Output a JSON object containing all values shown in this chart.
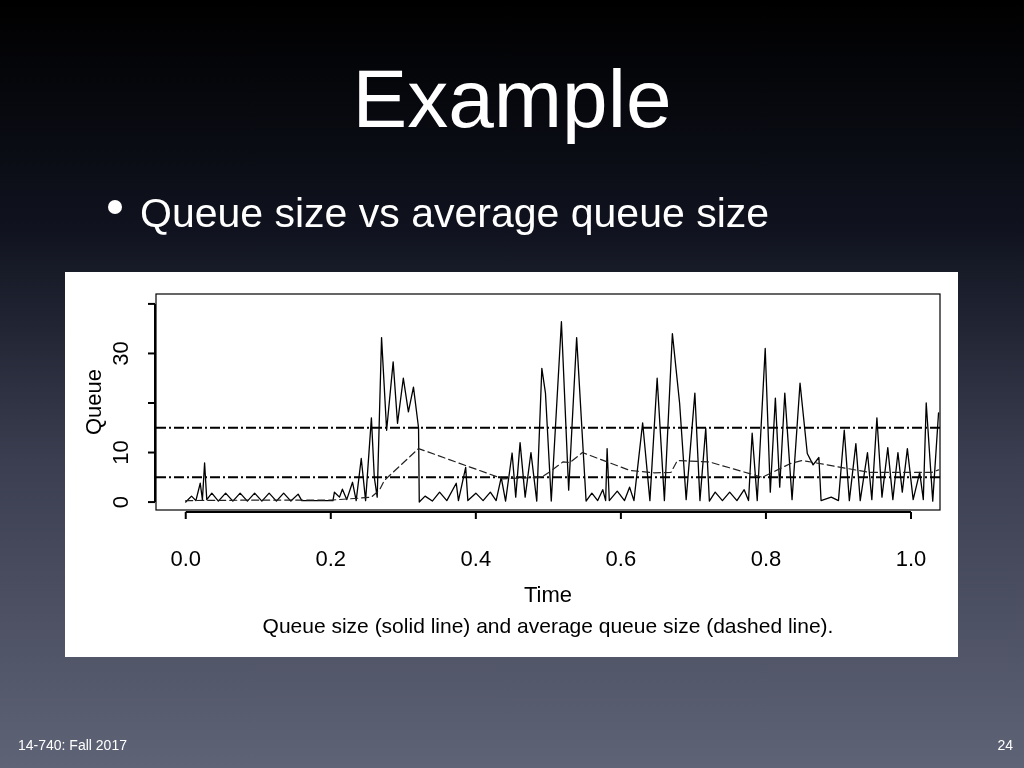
{
  "chart_data": {
    "type": "line",
    "title": "Example",
    "subtitle": "Queue size vs average queue size",
    "xlabel": "Time",
    "ylabel": "Queue",
    "annotations": [
      "Queue size (solid line) and average queue size (dashed line).",
      "14-740: Fall 2017",
      "24"
    ],
    "xlim": [
      -0.041,
      1.04
    ],
    "ylim": [
      -1.6,
      42
    ],
    "xticks": [
      {
        "value": 0,
        "label": "0.0"
      },
      0.2,
      0.4,
      0.6,
      0.8,
      {
        "value": 1,
        "label": "1.0"
      }
    ],
    "yticks": [
      0,
      10,
      {
        "value": 20,
        "label": null
      },
      30,
      {
        "value": 40,
        "label": null
      }
    ],
    "ref_lines": [
      {
        "axis": "y",
        "value": 5,
        "color": "#000000",
        "line_style": "dashed"
      },
      {
        "axis": "y",
        "value": 15,
        "color": "#000000",
        "line_style": "dashed"
      }
    ],
    "series": [
      {
        "color": "#000000",
        "line_style": "solid",
        "x": [
          0,
          0.008,
          0.014,
          0.02,
          0.023,
          0.026,
          0.029,
          0.036,
          0.045,
          0.055,
          0.065,
          0.075,
          0.085,
          0.095,
          0.105,
          0.115,
          0.125,
          0.135,
          0.145,
          0.155,
          0.16,
          0.19,
          0.203,
          0.205,
          0.212,
          0.216,
          0.222,
          0.23,
          0.235,
          0.242,
          0.248,
          0.256,
          0.26,
          0.264,
          0.27,
          0.277,
          0.286,
          0.292,
          0.3,
          0.307,
          0.314,
          0.321,
          0.322,
          0.33,
          0.34,
          0.35,
          0.36,
          0.373,
          0.376,
          0.386,
          0.389,
          0.4,
          0.41,
          0.42,
          0.428,
          0.435,
          0.441,
          0.45,
          0.455,
          0.461,
          0.468,
          0.476,
          0.484,
          0.491,
          0.496,
          0.504,
          0.518,
          0.528,
          0.539,
          0.552,
          0.56,
          0.568,
          0.575,
          0.579,
          0.581,
          0.584,
          0.595,
          0.605,
          0.612,
          0.618,
          0.63,
          0.64,
          0.65,
          0.66,
          0.671,
          0.681,
          0.69,
          0.702,
          0.709,
          0.717,
          0.722,
          0.73,
          0.74,
          0.75,
          0.76,
          0.77,
          0.776,
          0.781,
          0.788,
          0.799,
          0.806,
          0.813,
          0.819,
          0.826,
          0.836,
          0.847,
          0.857,
          0.865,
          0.873,
          0.876,
          0.89,
          0.9,
          0.908,
          0.915,
          0.924,
          0.93,
          0.94,
          0.946,
          0.953,
          0.96,
          0.968,
          0.975,
          0.982,
          0.988,
          0.995,
          1.003,
          1.012,
          1.017,
          1.021,
          1.03,
          1.038
        ],
        "values": [
          0,
          1.2,
          0.3,
          3.8,
          0.5,
          7.9,
          0.5,
          1.8,
          0.2,
          1.8,
          0.2,
          1.8,
          0.2,
          1.8,
          0.2,
          1.8,
          0.2,
          1.8,
          0.2,
          1.6,
          0.3,
          0.3,
          0.3,
          2,
          1,
          2.6,
          0.5,
          4,
          0.3,
          8.8,
          0.3,
          17,
          5,
          1,
          33.2,
          14.5,
          28.3,
          15.9,
          25,
          18.2,
          23.2,
          15,
          0,
          1.2,
          0.2,
          2,
          0.3,
          3.8,
          0.3,
          7,
          0.3,
          1.8,
          0.3,
          2,
          0.3,
          5,
          0.2,
          9.9,
          1,
          12,
          1,
          10,
          0.2,
          27,
          22,
          0.2,
          36.4,
          2.4,
          33.2,
          0.2,
          1.8,
          0.3,
          2.5,
          0.3,
          10.8,
          0.3,
          2.2,
          0.3,
          3,
          0.3,
          16,
          0.3,
          25,
          0.3,
          34,
          19.9,
          0.5,
          22,
          0.3,
          14.9,
          0.2,
          2,
          0.3,
          2,
          0.3,
          2.5,
          0.3,
          13.9,
          0.3,
          31,
          2,
          21,
          3,
          22,
          0.5,
          24,
          9.8,
          7.5,
          9,
          0.3,
          1,
          0.3,
          14.5,
          0.3,
          11.8,
          0.3,
          10,
          0.5,
          17,
          1,
          11,
          0.5,
          10,
          2,
          10.8,
          0.5,
          6,
          0.5,
          20,
          0.2,
          18
        ]
      },
      {
        "color": "#222222",
        "line_style": "dashed",
        "x": [
          0,
          0.1,
          0.2,
          0.24,
          0.256,
          0.267,
          0.274,
          0.321,
          0.437,
          0.49,
          0.5,
          0.52,
          0.53,
          0.547,
          0.612,
          0.646,
          0.669,
          0.678,
          0.722,
          0.795,
          0.834,
          0.85,
          0.942,
          1.029,
          1.038
        ],
        "values": [
          0.3,
          0.4,
          0.4,
          0.8,
          1,
          2.4,
          4.4,
          10.8,
          4.7,
          5,
          5.9,
          8.1,
          8,
          10,
          6.4,
          5.9,
          6,
          8.4,
          8.1,
          5,
          7.8,
          8.4,
          6,
          6,
          6.5
        ]
      }
    ]
  }
}
